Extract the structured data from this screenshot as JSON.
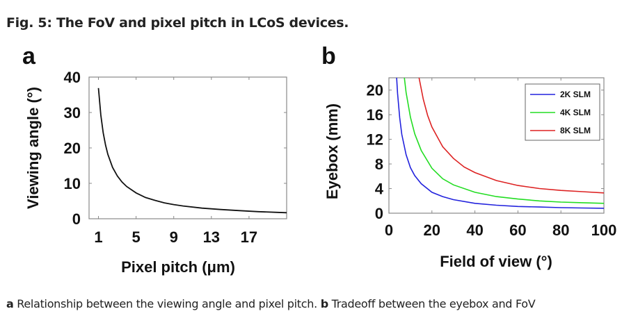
{
  "figure": {
    "title": "Fig. 5: The FoV and pixel pitch in LCoS devices.",
    "caption": {
      "a_label": "a",
      "a_text": " Relationship between the viewing angle and pixel pitch. ",
      "b_label": "b",
      "b_text": " Tradeoff between the eyebox and FoV"
    }
  },
  "chart_data": [
    {
      "panel": "a",
      "type": "line",
      "title": "",
      "xlabel": "Pixel pitch (μm)",
      "ylabel": "Viewing angle (°)",
      "xlim": [
        0,
        21
      ],
      "ylim": [
        0,
        40
      ],
      "xticks": [
        1,
        5,
        9,
        13,
        17
      ],
      "yticks": [
        0,
        10,
        20,
        30,
        40
      ],
      "grid": false,
      "series": [
        {
          "name": "Viewing angle",
          "color": "#111111",
          "x": [
            1,
            1.25,
            1.5,
            1.75,
            2,
            2.5,
            3,
            3.5,
            4,
            5,
            6,
            7,
            8,
            9,
            10,
            12,
            14,
            16,
            18,
            20,
            21
          ],
          "y": [
            36.9,
            29.3,
            24.3,
            20.8,
            18.2,
            14.5,
            12.1,
            10.4,
            9.1,
            7.3,
            6.0,
            5.2,
            4.5,
            4.0,
            3.6,
            3.0,
            2.6,
            2.3,
            2.0,
            1.8,
            1.7
          ]
        }
      ]
    },
    {
      "panel": "b",
      "type": "line",
      "title": "",
      "xlabel": "Field of view (°)",
      "ylabel": "Eyebox (mm)",
      "xlim": [
        0,
        100
      ],
      "ylim": [
        0,
        22
      ],
      "xticks": [
        0,
        20,
        40,
        60,
        80,
        100
      ],
      "yticks": [
        0,
        4,
        8,
        12,
        16,
        20
      ],
      "grid": false,
      "legend": {
        "position": "top-right"
      },
      "series": [
        {
          "name": "2K SLM",
          "color": "#2222dd",
          "x": [
            3.6,
            4,
            5,
            6,
            8,
            10,
            12,
            15,
            20,
            25,
            30,
            40,
            50,
            60,
            70,
            80,
            90,
            100
          ],
          "y": [
            22,
            19.5,
            15.5,
            12.8,
            9.5,
            7.4,
            6.1,
            4.8,
            3.4,
            2.7,
            2.2,
            1.6,
            1.3,
            1.1,
            1.0,
            0.9,
            0.85,
            0.8
          ]
        },
        {
          "name": "4K SLM",
          "color": "#22dd22",
          "x": [
            7.2,
            8,
            10,
            12,
            15,
            20,
            25,
            30,
            40,
            50,
            60,
            70,
            80,
            90,
            100
          ],
          "y": [
            22,
            19.6,
            15.6,
            12.9,
            10.2,
            7.3,
            5.6,
            4.6,
            3.4,
            2.7,
            2.3,
            2.0,
            1.8,
            1.7,
            1.6
          ]
        },
        {
          "name": "8K SLM",
          "color": "#dd2222",
          "x": [
            14,
            16,
            18,
            20,
            25,
            30,
            35,
            40,
            50,
            60,
            70,
            80,
            90,
            100
          ],
          "y": [
            22,
            18.5,
            15.9,
            14.0,
            10.8,
            8.9,
            7.5,
            6.6,
            5.3,
            4.5,
            4.0,
            3.7,
            3.5,
            3.3
          ]
        }
      ]
    }
  ]
}
